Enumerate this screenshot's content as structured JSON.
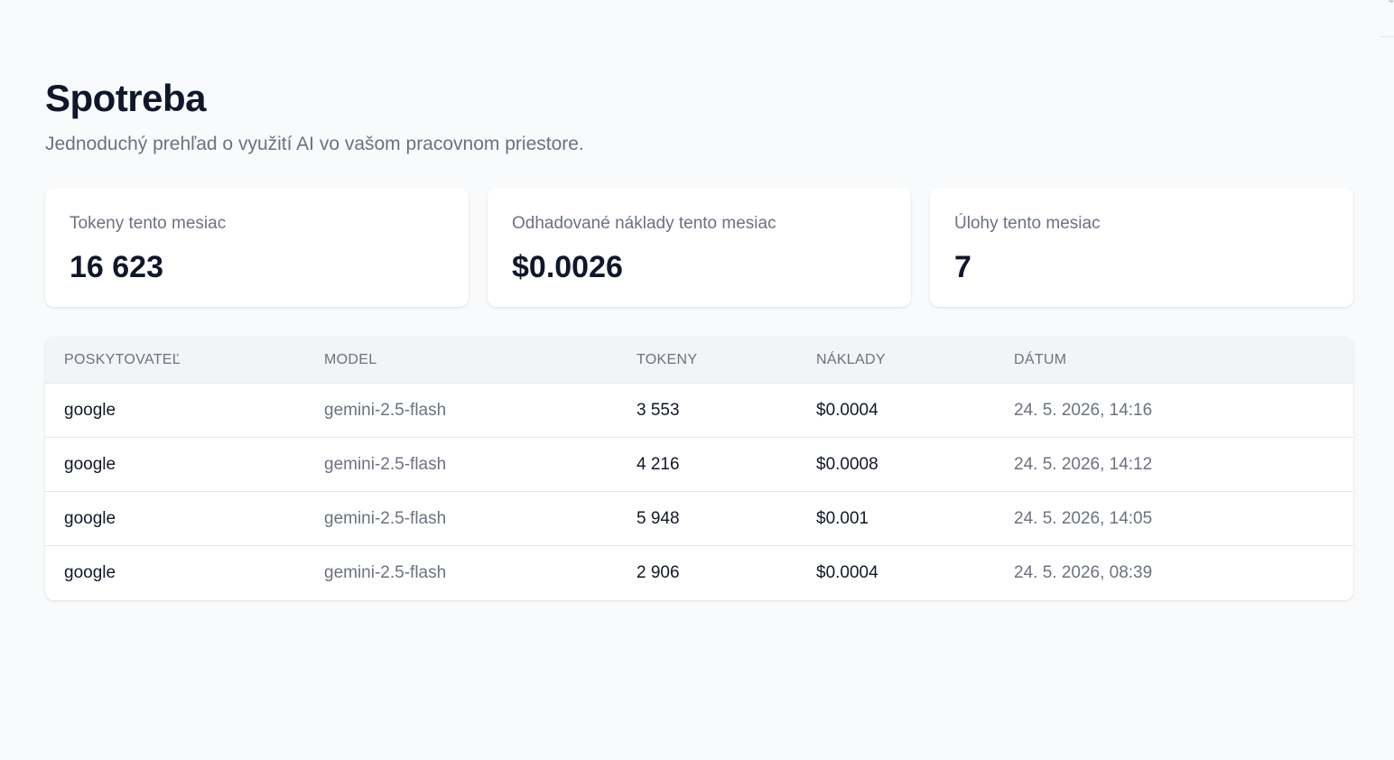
{
  "header": {
    "title": "Spotreba",
    "subtitle": "Jednoduchý prehľad o využití AI vo vašom pracovnom priestore."
  },
  "stats": [
    {
      "label": "Tokeny tento mesiac",
      "value": "16 623"
    },
    {
      "label": "Odhadované náklady tento mesiac",
      "value": "$0.0026"
    },
    {
      "label": "Úlohy tento mesiac",
      "value": "7"
    }
  ],
  "table": {
    "columns": [
      "POSKYTOVATEĽ",
      "MODEL",
      "TOKENY",
      "NÁKLADY",
      "DÁTUM"
    ],
    "rows": [
      {
        "provider": "google",
        "model": "gemini-2.5-flash",
        "tokens": "3 553",
        "cost": "$0.0004",
        "date": "24. 5. 2026, 14:16"
      },
      {
        "provider": "google",
        "model": "gemini-2.5-flash",
        "tokens": "4 216",
        "cost": "$0.0008",
        "date": "24. 5. 2026, 14:12"
      },
      {
        "provider": "google",
        "model": "gemini-2.5-flash",
        "tokens": "5 948",
        "cost": "$0.001",
        "date": "24. 5. 2026, 14:05"
      },
      {
        "provider": "google",
        "model": "gemini-2.5-flash",
        "tokens": "2 906",
        "cost": "$0.0004",
        "date": "24. 5. 2026, 08:39"
      }
    ]
  },
  "colors": {
    "background": "#f9fafb",
    "card": "#ffffff",
    "text_primary": "#0f172a",
    "text_muted": "#6b7280",
    "border": "#e5e7eb",
    "table_header_bg": "#f3f4f6"
  }
}
